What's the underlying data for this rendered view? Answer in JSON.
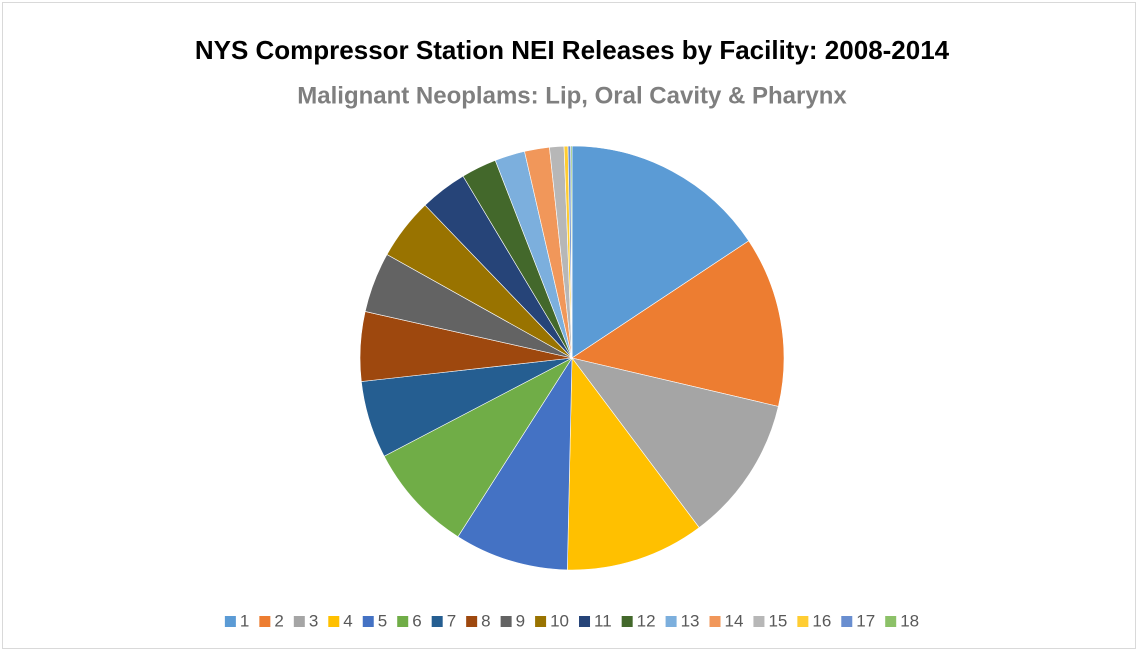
{
  "chart_data": {
    "type": "pie",
    "title": "NYS Compressor Station NEI Releases by Facility: 2008-2014",
    "subtitle": "Malignant Neoplams: Lip, Oral Cavity & Pharynx",
    "categories": [
      "1",
      "2",
      "3",
      "4",
      "5",
      "6",
      "7",
      "8",
      "9",
      "10",
      "11",
      "12",
      "13",
      "14",
      "15",
      "16",
      "17",
      "18"
    ],
    "values": [
      15.7,
      13,
      11.1,
      10.6,
      8.7,
      8.3,
      5.9,
      5.3,
      4.6,
      4.7,
      3.6,
      2.7,
      2.3,
      1.9,
      1.1,
      0.3,
      0.2,
      0.1
    ],
    "colors": [
      "#5b9bd5",
      "#ed7d31",
      "#a5a5a5",
      "#ffc000",
      "#4472c4",
      "#70ad47",
      "#255e91",
      "#9e480e",
      "#636363",
      "#997300",
      "#264478",
      "#43682b",
      "#7cafdd",
      "#f1975a",
      "#b7b7b7",
      "#ffcd33",
      "#698ed0",
      "#8cc168"
    ],
    "legend": "bottom"
  }
}
